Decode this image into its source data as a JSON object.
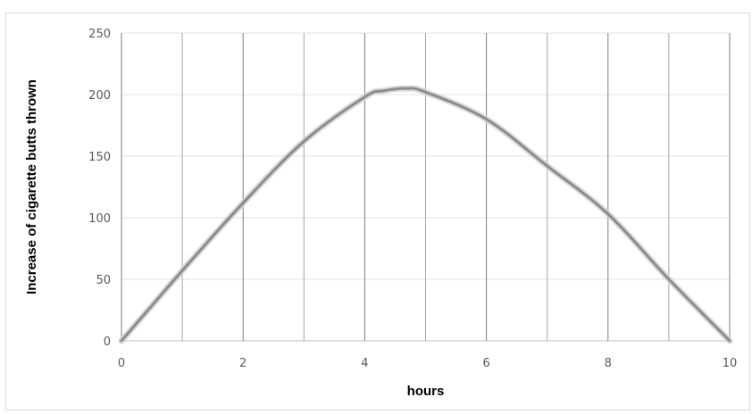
{
  "chart_data": {
    "type": "line",
    "title": "",
    "xlabel": "hours",
    "ylabel": "Increase of cigarette butts thrown",
    "xlim": [
      0,
      10
    ],
    "ylim": [
      0,
      250
    ],
    "x_ticks": [
      "0",
      "2",
      "4",
      "6",
      "8",
      "10"
    ],
    "y_ticks": [
      "0",
      "50",
      "100",
      "150",
      "200",
      "250"
    ],
    "grid": {
      "vertical_step": 1,
      "horizontal_step": 50
    },
    "legend": "none",
    "series": [
      {
        "color": "#8c8c8c",
        "x": [
          0,
          1,
          2,
          3,
          4,
          4.3,
          4.7,
          5,
          6,
          7,
          8,
          9,
          10
        ],
        "y": [
          0,
          57,
          112,
          162,
          198,
          203,
          205,
          202,
          180,
          142,
          103,
          50,
          0
        ]
      }
    ]
  }
}
